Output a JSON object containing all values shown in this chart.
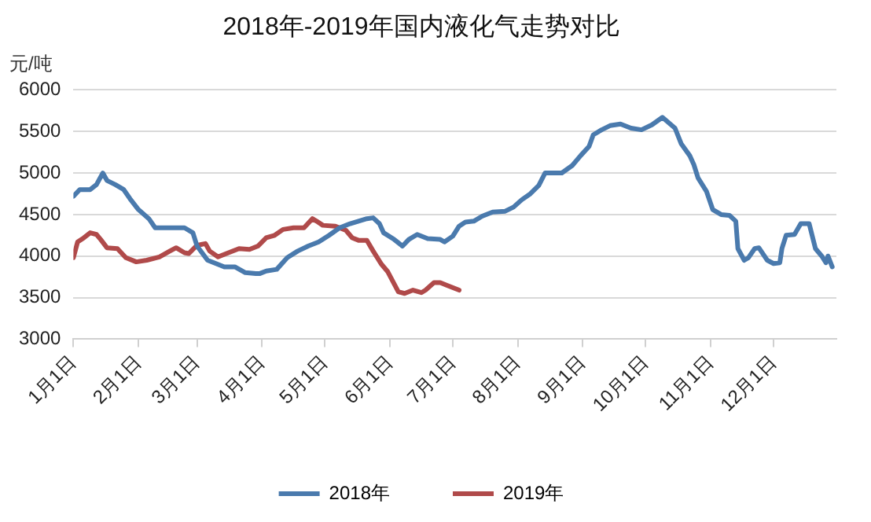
{
  "chart_data": {
    "type": "line",
    "title": "2018年-2019年国内液化气走势对比",
    "ylabel": "元/吨",
    "xlim": [
      "--01-01",
      "--12-31"
    ],
    "xticks": [
      {
        "value": "--01-01",
        "label": "1月1日"
      },
      {
        "value": "--02-01",
        "label": "2月1日"
      },
      {
        "value": "--03-01",
        "label": "3月1日"
      },
      {
        "value": "--04-01",
        "label": "4月1日"
      },
      {
        "value": "--05-01",
        "label": "5月1日"
      },
      {
        "value": "--06-01",
        "label": "6月1日"
      },
      {
        "value": "--07-01",
        "label": "7月1日"
      },
      {
        "value": "--08-01",
        "label": "8月1日"
      },
      {
        "value": "--09-01",
        "label": "9月1日"
      },
      {
        "value": "--10-01",
        "label": "10月1日"
      },
      {
        "value": "--11-01",
        "label": "11月1日"
      },
      {
        "value": "--12-01",
        "label": "12月1日"
      }
    ],
    "ylim": [
      3000,
      6000
    ],
    "yticks": [
      3000,
      3500,
      4000,
      4500,
      5000,
      5500,
      6000
    ],
    "grid": "y",
    "legend": "bottom",
    "marker": "none",
    "line_style": "solid",
    "series": [
      {
        "name": "2018年",
        "color": "#4a7aad",
        "x": [
          "--01-01",
          "--01-04",
          "--01-09",
          "--01-12",
          "--01-15",
          "--01-17",
          "--01-21",
          "--01-25",
          "--01-28",
          "--02-01",
          "--02-06",
          "--02-09",
          "--02-13",
          "--02-23",
          "--02-27",
          "--03-01",
          "--03-06",
          "--03-14",
          "--03-19",
          "--03-24",
          "--03-29",
          "--03-31",
          "--04-03",
          "--04-08",
          "--04-13",
          "--04-18",
          "--04-23",
          "--04-28",
          "--05-03",
          "--05-08",
          "--05-13",
          "--05-21",
          "--05-24",
          "--05-27",
          "--05-29",
          "--06-03",
          "--06-07",
          "--06-10",
          "--06-14",
          "--06-19",
          "--06-25",
          "--06-27",
          "--07-01",
          "--07-04",
          "--07-07",
          "--07-11",
          "--07-15",
          "--07-20",
          "--07-26",
          "--07-30",
          "--08-03",
          "--08-07",
          "--08-11",
          "--08-14",
          "--08-22",
          "--08-27",
          "--08-31",
          "--09-04",
          "--09-06",
          "--09-10",
          "--09-14",
          "--09-19",
          "--09-24",
          "--09-29",
          "--10-04",
          "--10-09",
          "--10-15",
          "--10-18",
          "--10-22",
          "--10-24",
          "--10-26",
          "--10-30",
          "--11-02",
          "--11-06",
          "--11-10",
          "--11-13",
          "--11-14",
          "--11-17",
          "--11-19",
          "--11-22",
          "--11-24",
          "--11-28",
          "--12-01",
          "--12-04",
          "--12-05",
          "--12-07",
          "--12-11",
          "--12-14",
          "--12-18",
          "--12-21",
          "--12-24",
          "--12-26",
          "--12-27",
          "--12-29"
        ],
        "values": [
          4720,
          4800,
          4800,
          4860,
          5000,
          4910,
          4860,
          4800,
          4690,
          4560,
          4450,
          4340,
          4340,
          4340,
          4280,
          4120,
          3950,
          3870,
          3870,
          3800,
          3790,
          3790,
          3820,
          3840,
          3980,
          4060,
          4120,
          4170,
          4250,
          4340,
          4390,
          4450,
          4460,
          4390,
          4280,
          4200,
          4120,
          4200,
          4260,
          4210,
          4200,
          4170,
          4240,
          4360,
          4410,
          4420,
          4480,
          4530,
          4540,
          4590,
          4680,
          4750,
          4850,
          5000,
          5000,
          5090,
          5210,
          5320,
          5460,
          5520,
          5570,
          5590,
          5540,
          5520,
          5580,
          5670,
          5540,
          5350,
          5210,
          5100,
          4940,
          4780,
          4560,
          4500,
          4490,
          4420,
          4090,
          3950,
          3980,
          4090,
          4100,
          3950,
          3910,
          3920,
          4090,
          4250,
          4260,
          4390,
          4390,
          4090,
          4000,
          3920,
          4000,
          3870
        ]
      },
      {
        "name": "2019年",
        "color": "#b04a4a",
        "x": [
          "--01-01",
          "--01-03",
          "--01-06",
          "--01-09",
          "--01-12",
          "--01-14",
          "--01-17",
          "--01-22",
          "--01-26",
          "--01-31",
          "--02-05",
          "--02-11",
          "--02-16",
          "--02-19",
          "--02-23",
          "--02-25",
          "--03-01",
          "--03-05",
          "--03-07",
          "--03-11",
          "--03-15",
          "--03-21",
          "--03-26",
          "--03-30",
          "--04-03",
          "--04-07",
          "--04-11",
          "--04-16",
          "--04-21",
          "--04-25",
          "--04-27",
          "--04-30",
          "--05-06",
          "--05-11",
          "--05-14",
          "--05-17",
          "--05-21",
          "--05-24",
          "--05-28",
          "--05-31",
          "--06-05",
          "--06-08",
          "--06-12",
          "--06-16",
          "--06-18",
          "--06-22",
          "--06-25",
          "--06-28",
          "--07-04"
        ],
        "values": [
          3980,
          4170,
          4220,
          4280,
          4260,
          4200,
          4100,
          4090,
          3980,
          3930,
          3950,
          3990,
          4060,
          4100,
          4040,
          4030,
          4130,
          4150,
          4060,
          3990,
          4030,
          4090,
          4080,
          4120,
          4220,
          4250,
          4320,
          4340,
          4340,
          4450,
          4420,
          4370,
          4360,
          4310,
          4220,
          4190,
          4190,
          4060,
          3900,
          3810,
          3570,
          3550,
          3590,
          3560,
          3590,
          3680,
          3680,
          3650,
          3590
        ]
      }
    ]
  }
}
